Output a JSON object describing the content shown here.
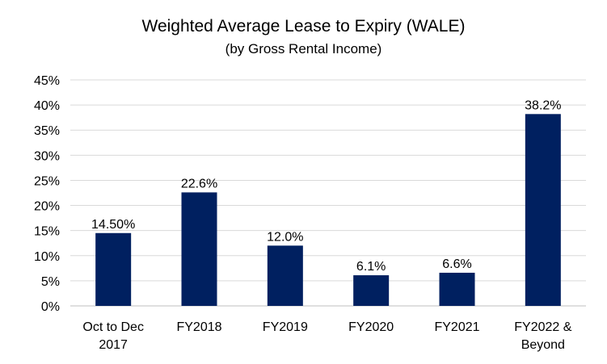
{
  "chart_data": {
    "type": "bar",
    "title": "Weighted Average Lease to Expiry (WALE)",
    "subtitle": "(by Gross Rental Income)",
    "categories": [
      [
        "Oct to Dec",
        "2017"
      ],
      [
        "FY2018"
      ],
      [
        "FY2019"
      ],
      [
        "FY2020"
      ],
      [
        "FY2021"
      ],
      [
        "FY2022 &",
        "Beyond"
      ]
    ],
    "values": [
      14.5,
      22.6,
      12.0,
      6.1,
      6.6,
      38.2
    ],
    "data_labels": [
      "14.50%",
      "22.6%",
      "12.0%",
      "6.1%",
      "6.6%",
      "38.2%"
    ],
    "ylim": [
      0,
      45
    ],
    "y_ticks": [
      0,
      5,
      10,
      15,
      20,
      25,
      30,
      35,
      40,
      45
    ],
    "y_tick_labels": [
      "0%",
      "5%",
      "10%",
      "15%",
      "20%",
      "25%",
      "30%",
      "35%",
      "40%",
      "45%"
    ],
    "xlabel": "",
    "ylabel": "",
    "grid": true,
    "legend": "none",
    "bar_color": "#002060",
    "grid_color": "#d9d9d9",
    "axis_color": "#bfbfbf"
  }
}
